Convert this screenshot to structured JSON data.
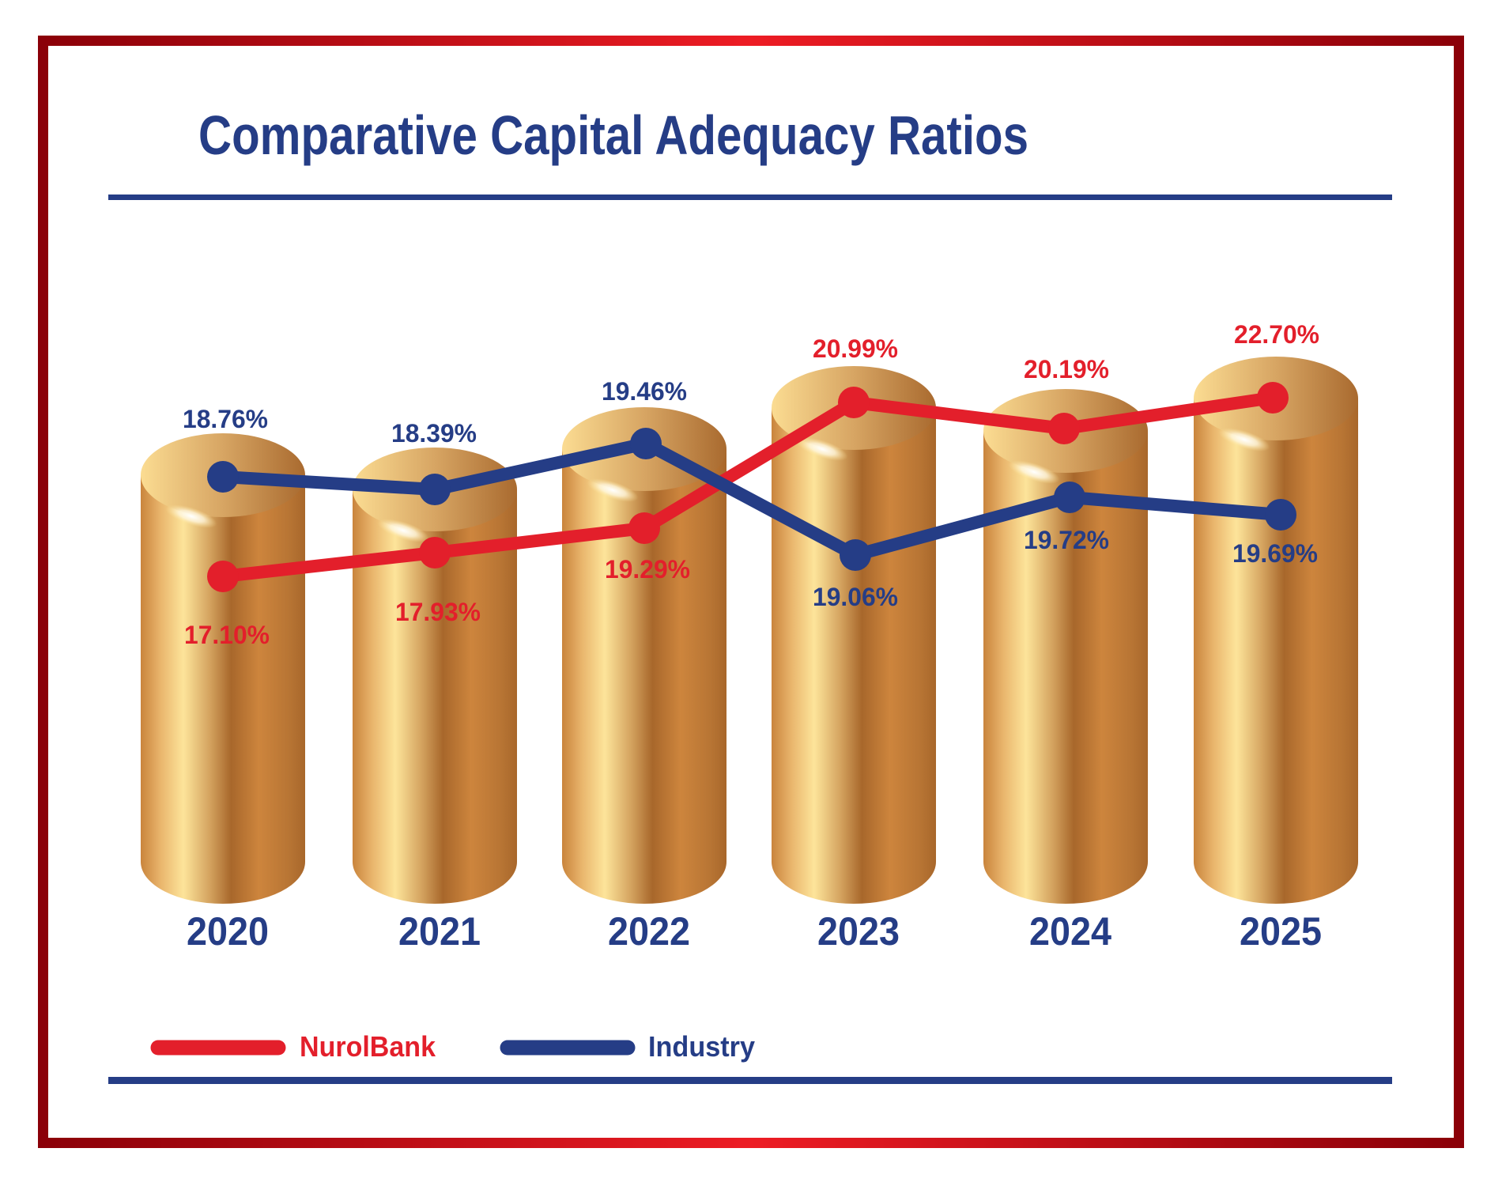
{
  "chart_data": {
    "type": "line",
    "title": "Comparative Capital Adequacy Ratios",
    "categories": [
      "2020",
      "2021",
      "2022",
      "2023",
      "2024",
      "2025"
    ],
    "series": [
      {
        "name": "NurolBank",
        "color": "#e31f2b",
        "values": [
          17.1,
          17.93,
          19.29,
          20.99,
          20.19,
          22.7
        ],
        "labels": [
          "17.10%",
          "17.93%",
          "19.29%",
          "20.99%",
          "20.19%",
          "22.70%"
        ]
      },
      {
        "name": "Industry",
        "color": "#253d86",
        "values": [
          18.76,
          18.39,
          19.46,
          19.06,
          19.72,
          19.69
        ],
        "labels": [
          "18.76%",
          "18.39%",
          "19.46%",
          "19.06%",
          "19.72%",
          "19.69%"
        ]
      }
    ],
    "unit": "%",
    "background_marks": "gold cylinders, one per year",
    "grid": false,
    "legend_position": "bottom-left"
  },
  "colors": {
    "title": "#253d86",
    "frame_dark": "#8b0008",
    "frame_bright": "#ed1c24",
    "gold_light": "#fde49a",
    "gold_dark": "#a8672b"
  }
}
